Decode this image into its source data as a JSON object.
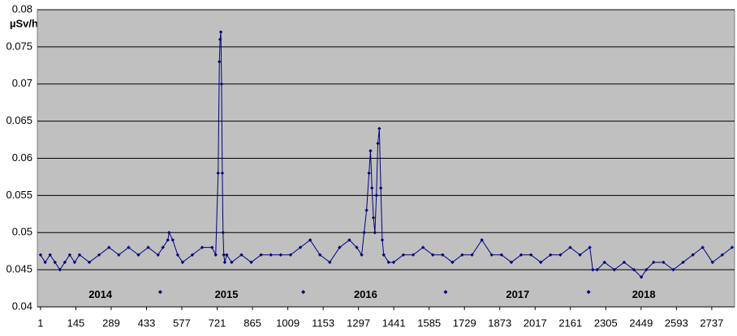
{
  "chart_data": {
    "type": "line",
    "y_label": "µSv/h",
    "x": [
      1,
      20,
      40,
      60,
      80,
      100,
      120,
      140,
      160,
      200,
      240,
      280,
      320,
      360,
      400,
      440,
      480,
      500,
      520,
      525,
      540,
      560,
      580,
      620,
      660,
      700,
      715,
      725,
      730,
      733,
      736,
      739,
      742,
      745,
      748,
      752,
      760,
      780,
      820,
      860,
      900,
      940,
      980,
      1020,
      1060,
      1100,
      1140,
      1180,
      1220,
      1260,
      1290,
      1310,
      1320,
      1330,
      1340,
      1346,
      1352,
      1358,
      1364,
      1370,
      1376,
      1382,
      1388,
      1394,
      1400,
      1420,
      1440,
      1480,
      1520,
      1560,
      1600,
      1640,
      1680,
      1720,
      1760,
      1800,
      1840,
      1880,
      1920,
      1960,
      2000,
      2040,
      2080,
      2120,
      2160,
      2200,
      2240,
      2252,
      2270,
      2300,
      2340,
      2380,
      2420,
      2450,
      2470,
      2500,
      2540,
      2580,
      2620,
      2660,
      2700,
      2740,
      2780,
      2820
    ],
    "series": [
      {
        "color": "#000080",
        "values": [
          0.047,
          0.046,
          0.047,
          0.046,
          0.045,
          0.046,
          0.047,
          0.046,
          0.047,
          0.046,
          0.047,
          0.048,
          0.047,
          0.048,
          0.047,
          0.048,
          0.047,
          0.048,
          0.049,
          0.05,
          0.049,
          0.047,
          0.046,
          0.047,
          0.048,
          0.048,
          0.047,
          0.058,
          0.073,
          0.076,
          0.077,
          0.07,
          0.058,
          0.05,
          0.047,
          0.046,
          0.047,
          0.046,
          0.047,
          0.046,
          0.047,
          0.047,
          0.047,
          0.047,
          0.048,
          0.049,
          0.047,
          0.046,
          0.048,
          0.049,
          0.048,
          0.047,
          0.05,
          0.053,
          0.058,
          0.061,
          0.056,
          0.052,
          0.05,
          0.055,
          0.062,
          0.064,
          0.056,
          0.049,
          0.047,
          0.046,
          0.046,
          0.047,
          0.047,
          0.048,
          0.047,
          0.047,
          0.046,
          0.047,
          0.047,
          0.049,
          0.047,
          0.047,
          0.046,
          0.047,
          0.047,
          0.046,
          0.047,
          0.047,
          0.048,
          0.047,
          0.048,
          0.045,
          0.045,
          0.046,
          0.045,
          0.046,
          0.045,
          0.044,
          0.045,
          0.046,
          0.046,
          0.045,
          0.046,
          0.047,
          0.048,
          0.046,
          0.047,
          0.048
        ]
      }
    ],
    "separators": {
      "color": "#000080",
      "x": [
        489,
        1072,
        1652,
        2235
      ],
      "values": [
        0.042,
        0.042,
        0.042,
        0.042
      ]
    },
    "annotations": [
      {
        "text": "2014",
        "x": 245,
        "y": 0.0416
      },
      {
        "text": "2015",
        "x": 759,
        "y": 0.0416
      },
      {
        "text": "2016",
        "x": 1326,
        "y": 0.0416
      },
      {
        "text": "2017",
        "x": 1946,
        "y": 0.0416
      },
      {
        "text": "2018",
        "x": 2460,
        "y": 0.0416
      }
    ],
    "xlim": [
      -12,
      2830
    ],
    "xticks": [
      1,
      145,
      289,
      433,
      577,
      721,
      865,
      1009,
      1153,
      1297,
      1441,
      1585,
      1729,
      1873,
      2017,
      2161,
      2305,
      2449,
      2593,
      2737
    ],
    "ylim": [
      0.04,
      0.08
    ],
    "yticks": [
      0.04,
      0.045,
      0.05,
      0.055,
      0.06,
      0.065,
      0.07,
      0.075,
      0.08
    ],
    "grid": true,
    "background": "#c0c0c0"
  }
}
